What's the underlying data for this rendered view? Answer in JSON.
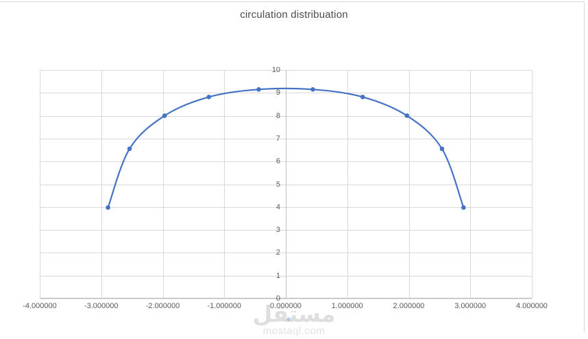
{
  "chart": {
    "title": "circulation distribuation"
  },
  "watermark": {
    "logo": "مستقل",
    "site": "mostaql.com"
  },
  "colors": {
    "series": "#4472C4",
    "gridline": "#d9d9d9",
    "axis_line": "#bfbfbf",
    "tick_label": "#595959",
    "title": "#4b4b4b",
    "chart_border": "#d9d9d9",
    "watermark": "#dedede"
  },
  "chart_data": {
    "type": "line",
    "title": "circulation distribuation",
    "x": [
      -2.89,
      -2.54,
      -1.97,
      -1.25,
      -0.44,
      0.44,
      1.25,
      1.97,
      2.54,
      2.89
    ],
    "y": [
      3.98,
      6.55,
      8.0,
      8.82,
      9.15,
      9.15,
      8.82,
      8.0,
      6.55,
      3.98
    ],
    "xlim": [
      -4,
      4
    ],
    "ylim": [
      0,
      10
    ],
    "x_tick_labels": [
      "-4.000000",
      "-3.000000",
      "-2.000000",
      "-1.000000",
      "0.000000",
      "1.000000",
      "2.000000",
      "3.000000",
      "4.000000"
    ],
    "x_tick_values": [
      -4,
      -3,
      -2,
      -1,
      0,
      1,
      2,
      3,
      4
    ],
    "y_tick_labels": [
      "0",
      "1",
      "2",
      "3",
      "4",
      "5",
      "6",
      "7",
      "8",
      "9",
      "10"
    ],
    "y_tick_values": [
      0,
      1,
      2,
      3,
      4,
      5,
      6,
      7,
      8,
      9,
      10
    ],
    "grid": true,
    "smooth_line": true,
    "markers": true,
    "legend": "none",
    "xlabel": "",
    "ylabel": "",
    "vertical_axis_position": "center"
  }
}
